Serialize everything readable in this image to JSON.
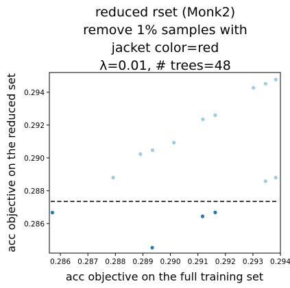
{
  "chart_data": {
    "type": "scatter",
    "title_lines": [
      "reduced rset (Monk2)",
      "remove 1% samples with",
      "jacket color=red",
      "λ=0.01, # trees=48"
    ],
    "xlabel": "acc objective on the full training set",
    "ylabel": "acc objective on the reduced set",
    "xlim": [
      0.2856,
      0.294
    ],
    "ylim": [
      0.2842,
      0.2952
    ],
    "x_ticks": [
      0.286,
      0.287,
      0.288,
      0.289,
      0.29,
      0.291,
      0.292,
      0.293,
      0.294
    ],
    "x_tick_labels": [
      "0.286",
      "0.287",
      "0.288",
      "0.289",
      "0.290",
      "0.291",
      "0.292",
      "0.293",
      "0.294"
    ],
    "y_ticks": [
      0.286,
      0.288,
      0.29,
      0.292,
      0.294
    ],
    "y_tick_labels": [
      "0.286",
      "0.288",
      "0.290",
      "0.292",
      "0.294"
    ],
    "grid": false,
    "reference_line": {
      "style": "dashed",
      "color": "#000000",
      "y": 0.28735,
      "x_range": [
        0.28565,
        0.29385
      ]
    },
    "colors": {
      "light_points": "#9ecae1",
      "dark_points": "#1f77b4"
    },
    "series": [
      {
        "points": [
          {
            "x": 0.28792,
            "y": 0.2888
          },
          {
            "x": 0.28891,
            "y": 0.29023
          },
          {
            "x": 0.28935,
            "y": 0.29047
          },
          {
            "x": 0.29013,
            "y": 0.29093
          },
          {
            "x": 0.29118,
            "y": 0.29235
          },
          {
            "x": 0.29163,
            "y": 0.2926
          },
          {
            "x": 0.29302,
            "y": 0.29427
          },
          {
            "x": 0.29346,
            "y": 0.29452
          },
          {
            "x": 0.29383,
            "y": 0.29477
          },
          {
            "x": 0.29346,
            "y": 0.28858
          },
          {
            "x": 0.29383,
            "y": 0.2888
          }
        ]
      },
      {
        "points": [
          {
            "x": 0.28571,
            "y": 0.28667
          },
          {
            "x": 0.28934,
            "y": 0.28453
          },
          {
            "x": 0.29117,
            "y": 0.28644
          },
          {
            "x": 0.29163,
            "y": 0.28668
          }
        ]
      }
    ]
  }
}
